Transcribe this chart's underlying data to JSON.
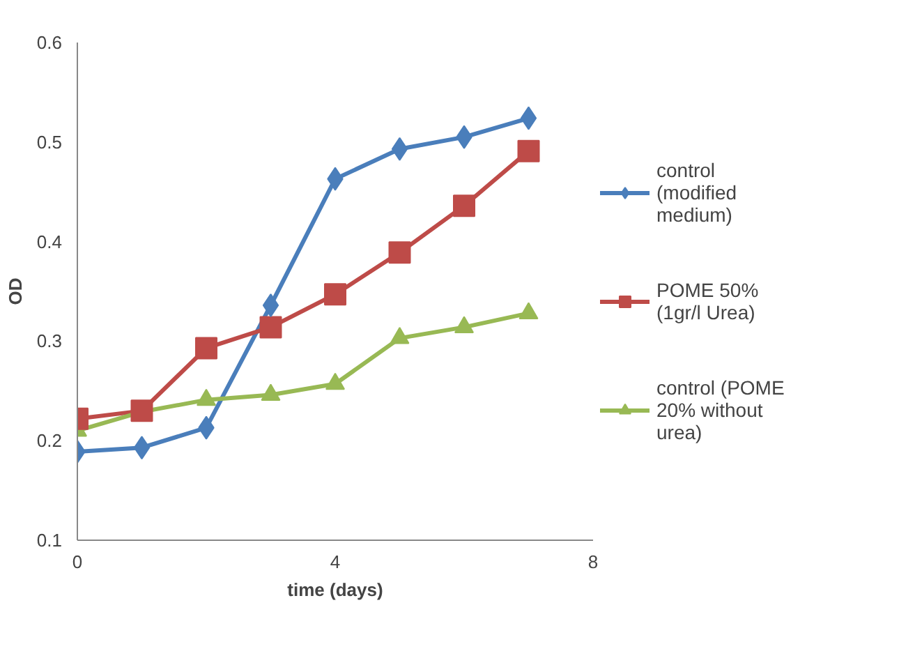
{
  "chart_data": {
    "type": "line",
    "xlabel": "time (days)",
    "ylabel": "OD",
    "x": [
      0,
      1,
      2,
      3,
      4,
      5,
      6,
      7
    ],
    "series": [
      {
        "name": "control (modified medium)",
        "color": "#4a7ebb",
        "marker": "diamond",
        "values": [
          0.189,
          0.193,
          0.213,
          0.336,
          0.463,
          0.493,
          0.505,
          0.524
        ]
      },
      {
        "name": "POME 50% (1gr/l Urea)",
        "color": "#be4b48",
        "marker": "square",
        "values": [
          0.222,
          0.23,
          0.293,
          0.314,
          0.347,
          0.389,
          0.436,
          0.491
        ]
      },
      {
        "name": "control (POME 20% without urea)",
        "color": "#98b954",
        "marker": "triangle",
        "values": [
          0.21,
          0.229,
          0.241,
          0.246,
          0.257,
          0.303,
          0.314,
          0.328
        ]
      }
    ],
    "xlim": [
      0,
      8
    ],
    "xticks": [
      0,
      4,
      8
    ],
    "ylim": [
      0.1,
      0.6
    ],
    "yticks": [
      0.1,
      0.2,
      0.3,
      0.4,
      0.5,
      0.6
    ],
    "grid": false,
    "legend": "right",
    "line_style": "solid"
  }
}
